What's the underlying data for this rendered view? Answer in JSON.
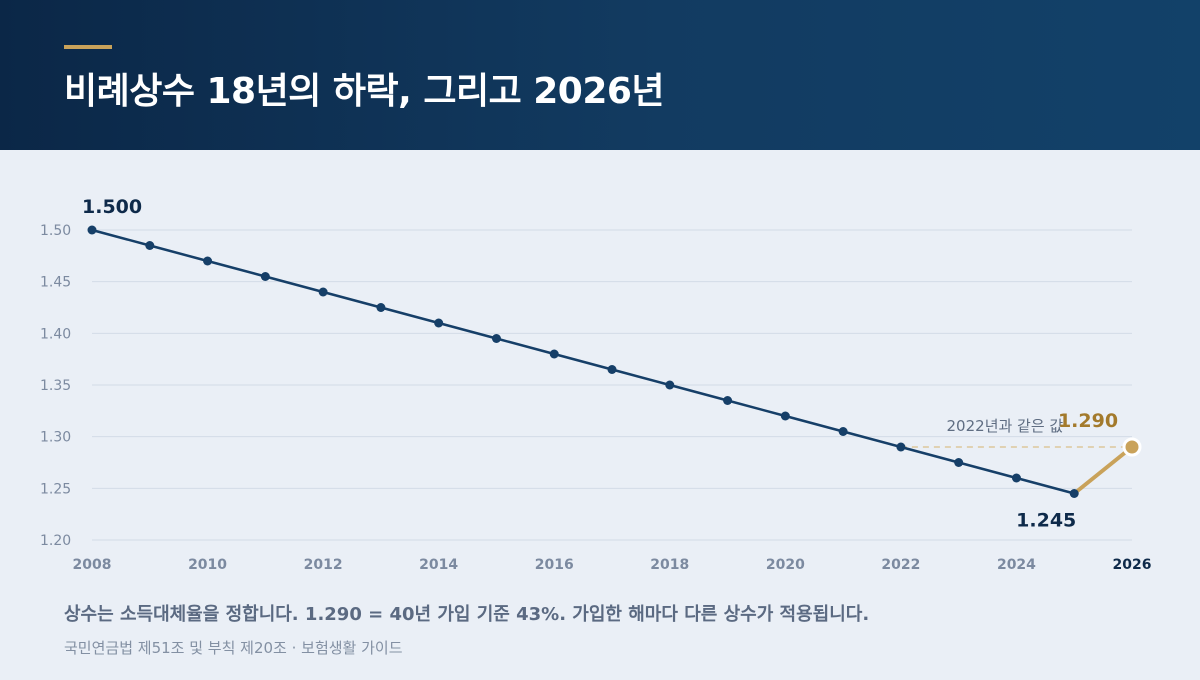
{
  "header": {
    "title": "비례상수 18년의 하락, 그리고 2026년"
  },
  "chart_data": {
    "type": "line",
    "x": [
      2008,
      2009,
      2010,
      2011,
      2012,
      2013,
      2014,
      2015,
      2016,
      2017,
      2018,
      2019,
      2020,
      2021,
      2022,
      2023,
      2024,
      2025,
      2026
    ],
    "series": [
      {
        "values": [
          1.5,
          1.485,
          1.47,
          1.455,
          1.44,
          1.425,
          1.41,
          1.395,
          1.38,
          1.365,
          1.35,
          1.335,
          1.32,
          1.305,
          1.29,
          1.275,
          1.26,
          1.245,
          null
        ],
        "color": "#163f68"
      },
      {
        "x": [
          2025,
          2026
        ],
        "values": [
          1.245,
          1.29
        ],
        "color": "#c9a25a"
      }
    ],
    "xticks": [
      "2008",
      "2010",
      "2012",
      "2014",
      "2016",
      "2018",
      "2020",
      "2022",
      "2024",
      "2026"
    ],
    "yticks": [
      "1.20",
      "1.25",
      "1.30",
      "1.35",
      "1.40",
      "1.45",
      "1.50"
    ],
    "ylim": [
      1.2,
      1.5
    ],
    "xlim": [
      2008,
      2026
    ],
    "grid": true,
    "annotations": {
      "start_label": "1.500",
      "low_label": "1.245",
      "end_label": "1.290",
      "reference_label": "2022년과 같은 값"
    }
  },
  "caption": "상수는 소득대체율을 정합니다. 1.290 = 40년 가입 기준 43%. 가입한 해마다 다른 상수가 적용됩니다.",
  "source": "국민연금법 제51조 및 부칙 제20조 · 보험생활 가이드",
  "colors": {
    "header_dark": "#0b2747",
    "header_light": "#124169",
    "accent": "#c9a25a",
    "line": "#163f68",
    "background": "#eaeff6"
  }
}
